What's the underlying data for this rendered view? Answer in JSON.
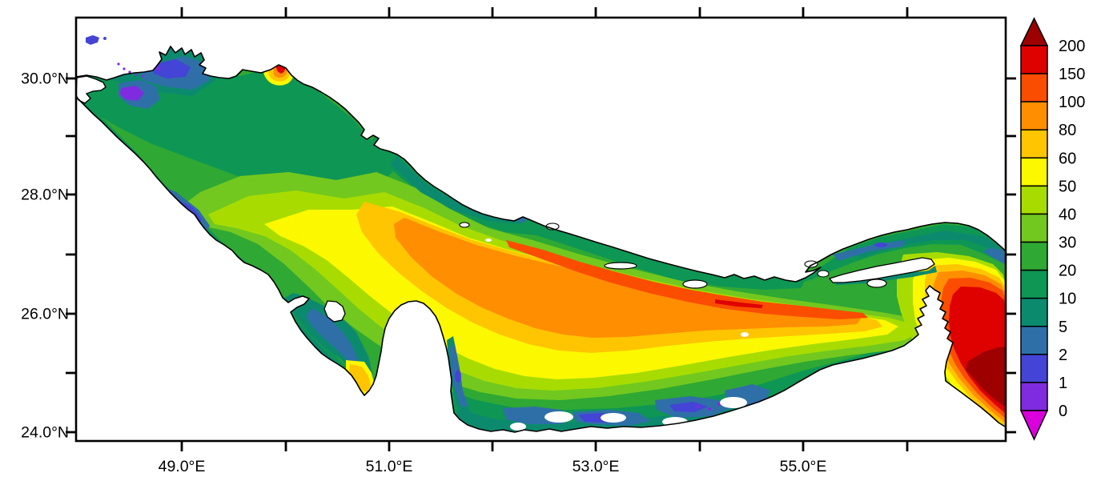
{
  "figure": {
    "kind": "geographic heatmap plot with colorbar",
    "background": "#ffffff",
    "frame_color": "#000000"
  },
  "axes": {
    "x": {
      "tick_labels": [
        "49.0°E",
        "51.0°E",
        "53.0°E",
        "55.0°E"
      ]
    },
    "y": {
      "tick_labels": [
        "30.0°N",
        "28.0°N",
        "26.0°N",
        "24.0°N"
      ]
    }
  },
  "colorbar": {
    "tick_labels": [
      "200",
      "150",
      "100",
      "80",
      "60",
      "50",
      "40",
      "30",
      "20",
      "10",
      "5",
      "2",
      "1",
      "0"
    ],
    "band_colors": [
      "#DF0000",
      "#FA4D00",
      "#FF8E00",
      "#FFC500",
      "#FBF800",
      "#A8DC00",
      "#72C81E",
      "#2FA834",
      "#0E9655",
      "#0C8A6E",
      "#2F6FA8",
      "#4444D6",
      "#7F2BE0"
    ],
    "arrow_top_color": "#9E0000",
    "arrow_bottom_color": "#D900DC"
  },
  "palette": {
    "band_gt200": "#9E0000",
    "band_150_200": "#DF0000",
    "band_100_150": "#FA4D00",
    "band_80_100": "#FF8E00",
    "band_60_80": "#FFC500",
    "band_50_60": "#FBF800",
    "band_40_50": "#A8DC00",
    "band_30_40": "#72C81E",
    "band_20_30": "#2FA834",
    "band_10_20": "#0E9655",
    "band_5_10": "#0C8A6E",
    "band_2_5": "#2F6FA8",
    "band_1_2": "#4444D6",
    "band_0_1": "#7F2BE0",
    "band_lt0": "#D900DC",
    "land": "#FFFFFF",
    "coastline": "#000000"
  },
  "chart_data": {
    "type": "heatmap",
    "title": "",
    "x_axis": {
      "tick_labels": [
        "49.0°E",
        "51.0°E",
        "53.0°E",
        "55.0°E"
      ],
      "minor_tick_step_deg": 1,
      "approx_range_deg_e": [
        48.0,
        57.0
      ]
    },
    "y_axis": {
      "tick_labels": [
        "30.0°N",
        "28.0°N",
        "26.0°N",
        "24.0°N"
      ],
      "minor_tick_step_deg": 1,
      "approx_range_deg_n": [
        23.85,
        31.0
      ]
    },
    "colorbar_levels": [
      0,
      1,
      2,
      5,
      10,
      20,
      30,
      40,
      50,
      60,
      80,
      100,
      150,
      200
    ],
    "colorbar_position": "right",
    "value_pattern": "Shallow (0-10) blue/violet along coasts; 10-30 green over most of basin; 40-60 yellow central band; 60-100 orange core along northeast axis; 100-200 red near strait at east; >200 dark red in bottom-right deep basin"
  }
}
